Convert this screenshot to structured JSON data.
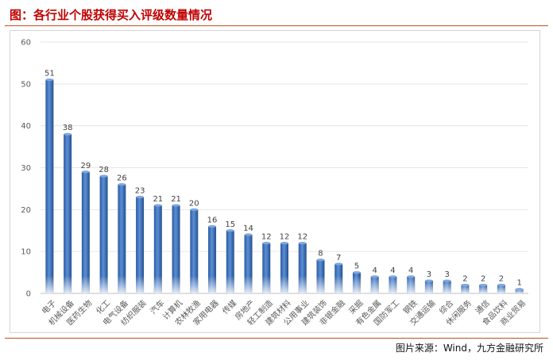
{
  "header": {
    "title": "图：各行业个股获得买入评级数量情况"
  },
  "footer": {
    "source": "图片来源：Wind，九方金融研究所"
  },
  "chart_data": {
    "type": "bar",
    "title": "",
    "xlabel": "",
    "ylabel": "",
    "ylim": [
      0,
      60
    ],
    "yticks": [
      0,
      10,
      20,
      30,
      40,
      50,
      60
    ],
    "grid": true,
    "bar_color": "#3d6fb6",
    "categories": [
      "电子",
      "机械设备",
      "医药生物",
      "化工",
      "电气设备",
      "纺织服装",
      "汽车",
      "计算机",
      "农林牧渔",
      "家用电器",
      "传媒",
      "房地产",
      "轻工制造",
      "建筑材料",
      "公用事业",
      "建筑装饰",
      "非银金融",
      "采掘",
      "有色金属",
      "国防军工",
      "钢铁",
      "交通运输",
      "综合",
      "休闲服务",
      "通信",
      "食品饮料",
      "商业贸易"
    ],
    "values": [
      51,
      38,
      29,
      28,
      26,
      23,
      21,
      21,
      20,
      16,
      15,
      14,
      12,
      12,
      12,
      8,
      7,
      5,
      4,
      4,
      4,
      3,
      3,
      2,
      2,
      2,
      1
    ]
  }
}
